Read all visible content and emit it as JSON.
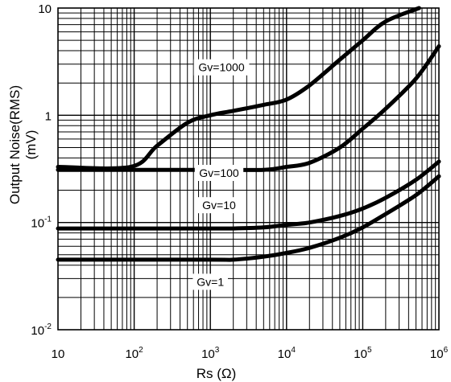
{
  "chart_data": {
    "type": "line",
    "xscale": "log",
    "yscale": "log",
    "xlim": [
      10,
      1000000
    ],
    "ylim": [
      0.01,
      10
    ],
    "xlabel": "Rs",
    "xunit": "(Ω)",
    "ylabel": "Output Noise(RMS)",
    "yunit": "(mV)",
    "xticks": [
      {
        "base": "10",
        "exp": ""
      },
      {
        "base": "10",
        "exp": "2"
      },
      {
        "base": "10",
        "exp": "3"
      },
      {
        "base": "10",
        "exp": "4"
      },
      {
        "base": "10",
        "exp": "5"
      },
      {
        "base": "10",
        "exp": "6"
      }
    ],
    "yticks": [
      {
        "base": "10",
        "exp": ""
      },
      {
        "base": "1",
        "exp": ""
      },
      {
        "base": "10",
        "exp": "-1"
      },
      {
        "base": "10",
        "exp": "-2"
      }
    ],
    "grid": true,
    "series": [
      {
        "name": "Gv=1000",
        "x": [
          10,
          90,
          200,
          500,
          1000,
          2000,
          5000,
          10000,
          20000,
          50000,
          100000,
          200000,
          550000
        ],
        "y": [
          0.33,
          0.33,
          0.52,
          0.85,
          1.0,
          1.1,
          1.25,
          1.4,
          1.9,
          3.3,
          5.0,
          7.5,
          10.0
        ]
      },
      {
        "name": "Gv=100",
        "x": [
          10,
          1000,
          5000,
          10000,
          20000,
          50000,
          100000,
          200000,
          500000,
          1000000
        ],
        "y": [
          0.31,
          0.31,
          0.31,
          0.33,
          0.36,
          0.5,
          0.75,
          1.15,
          2.2,
          4.4
        ]
      },
      {
        "name": "Gv=10",
        "x": [
          10,
          1000,
          2000,
          5000,
          10000,
          20000,
          50000,
          100000,
          200000,
          500000,
          1000000
        ],
        "y": [
          0.088,
          0.088,
          0.088,
          0.09,
          0.095,
          0.1,
          0.115,
          0.135,
          0.17,
          0.25,
          0.37
        ]
      },
      {
        "name": "Gv=1",
        "x": [
          10,
          1000,
          2000,
          5000,
          10000,
          20000,
          50000,
          100000,
          200000,
          500000,
          1000000
        ],
        "y": [
          0.045,
          0.045,
          0.045,
          0.048,
          0.052,
          0.058,
          0.072,
          0.09,
          0.12,
          0.18,
          0.27
        ]
      }
    ]
  }
}
